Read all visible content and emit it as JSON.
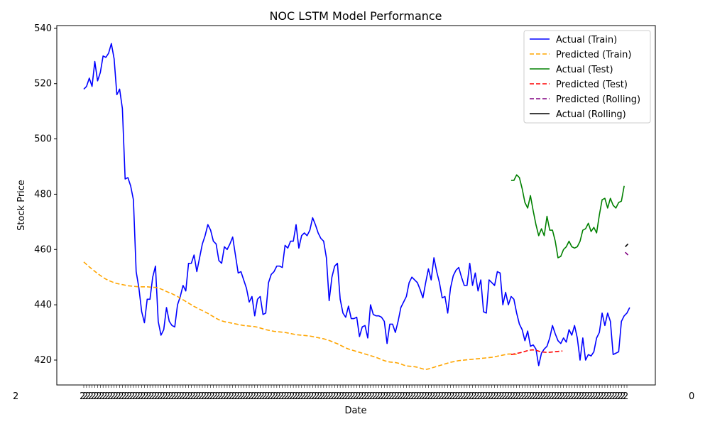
{
  "chart_data": {
    "type": "line",
    "title": "NOC LSTM Model Performance",
    "xlabel": "Date",
    "ylabel": "Stock Price",
    "ylim": [
      411,
      541
    ],
    "yticks": [
      420,
      440,
      460,
      480,
      500,
      520,
      540
    ],
    "x_tick_label_sample": "2",
    "x_tick_label_sample_end": "0",
    "grid": false,
    "legend_position": "top-right",
    "x": {
      "train_start": 0,
      "train_end": 154,
      "test_start": 155,
      "test_end": 196,
      "rolling_start": 196,
      "rolling_end": 197
    },
    "series": [
      {
        "name": "Actual (Train)",
        "color": "#0000ff",
        "dash": "solid",
        "x_start": 0,
        "x_step": 1,
        "values": [
          518,
          519,
          522,
          519,
          528,
          521,
          524,
          530,
          529.5,
          531,
          534.5,
          529,
          516,
          518,
          511,
          485.5,
          486,
          483,
          478,
          452,
          446,
          437.5,
          433.5,
          442,
          442,
          450,
          454,
          434,
          429,
          431,
          439,
          434,
          432.5,
          432,
          440,
          443,
          447,
          445,
          455,
          455,
          458,
          452,
          457,
          462,
          465,
          469,
          467,
          463,
          462,
          456,
          455,
          461,
          460,
          462,
          464.5,
          458,
          451.5,
          452,
          449,
          446,
          441,
          443,
          436,
          442,
          443,
          436.5,
          437,
          448,
          451,
          452,
          454,
          454,
          453.5,
          461.5,
          460.5,
          463,
          463,
          469,
          460.5,
          465,
          466,
          465,
          467,
          471.5,
          469,
          466,
          464,
          463,
          457,
          441.5,
          450,
          454,
          455,
          442,
          437,
          435.5,
          439.5,
          435,
          435,
          435.5,
          428.5,
          432,
          432.5,
          428,
          440,
          436.5,
          436,
          436,
          435.5,
          434,
          426,
          433,
          433,
          430,
          434,
          439,
          441,
          443,
          448,
          450,
          449,
          448,
          445.5,
          442.5,
          448,
          453,
          449,
          457,
          452,
          448,
          442.5,
          443,
          437,
          446,
          450.5,
          452.5,
          453.5,
          450,
          447,
          447,
          455,
          447,
          451.5,
          445,
          449,
          437.5,
          437,
          449,
          448,
          447,
          452,
          451.5,
          440,
          444.5,
          440,
          443,
          442,
          437,
          433,
          431,
          427,
          430.5,
          425,
          425.5,
          424,
          418,
          422.5,
          424,
          425,
          428,
          432.5,
          429.5,
          427,
          426,
          428,
          426.5,
          431,
          429,
          432.5,
          428,
          420,
          428,
          420,
          422,
          421.5,
          423,
          428,
          430,
          437,
          432.5,
          437,
          434,
          422,
          422.5,
          423,
          434,
          436,
          437,
          439
        ]
      },
      {
        "name": "Predicted (Train)",
        "color": "#ffa500",
        "dash": "dashed",
        "x_start": 0,
        "x_step": 1,
        "values": [
          455.5,
          454.6,
          453.7,
          452.9,
          452.1,
          451.3,
          450.6,
          449.9,
          449.3,
          448.8,
          448.4,
          448.0,
          447.7,
          447.5,
          447.3,
          447.1,
          446.9,
          446.8,
          446.7,
          446.6,
          446.5,
          446.5,
          446.5,
          446.5,
          446.4,
          446.3,
          446.3,
          446.1,
          445.7,
          445.3,
          444.8,
          444.4,
          444.0,
          443.5,
          443.0,
          442.4,
          441.8,
          441.2,
          440.6,
          440.0,
          439.4,
          438.9,
          438.4,
          437.9,
          437.4,
          436.9,
          436.3,
          435.7,
          435.1,
          434.6,
          434.2,
          433.9,
          433.7,
          433.5,
          433.3,
          433.1,
          432.9,
          432.7,
          432.5,
          432.4,
          432.3,
          432.2,
          432.1,
          431.9,
          431.6,
          431.3,
          431.0,
          430.8,
          430.6,
          430.4,
          430.3,
          430.2,
          430.1,
          430.0,
          429.8,
          429.6,
          429.4,
          429.2,
          429.1,
          429.0,
          428.9,
          428.8,
          428.7,
          428.5,
          428.3,
          428.1,
          427.9,
          427.7,
          427.4,
          427.1,
          426.7,
          426.3,
          425.9,
          425.4,
          424.9,
          424.4,
          424.0,
          423.7,
          423.4,
          423.1,
          422.8,
          422.5,
          422.2,
          421.9,
          421.6,
          421.3,
          421.0,
          420.6,
          420.2,
          419.8,
          419.5,
          419.3,
          419.2,
          419.1,
          418.9,
          418.6,
          418.2,
          417.9,
          417.8,
          417.7,
          417.6,
          417.4,
          417.1,
          416.8,
          416.6,
          416.8,
          417.1,
          417.4,
          417.7,
          418.0,
          418.3,
          418.6,
          418.9,
          419.2,
          419.4,
          419.6,
          419.8,
          419.9,
          420.0,
          420.1,
          420.2,
          420.3,
          420.4,
          420.5,
          420.6,
          420.7,
          420.8,
          420.9,
          421.0,
          421.2,
          421.4,
          421.6,
          421.8,
          422.0,
          422.2,
          422.2,
          422.1,
          422.1
        ]
      },
      {
        "name": "Actual (Test)",
        "color": "#008000",
        "dash": "solid",
        "x_start": 155,
        "x_step": 1,
        "values": [
          485,
          485,
          487,
          486,
          482,
          477,
          475,
          479.5,
          474,
          469,
          465,
          467.5,
          465,
          472,
          467,
          467,
          463,
          457,
          457.5,
          460,
          461,
          463,
          461,
          460.5,
          461,
          463,
          467,
          467.5,
          469.5,
          466.5,
          468,
          466,
          472.5,
          478,
          478.5,
          475,
          478.5,
          476,
          475,
          477,
          477.5,
          483
        ]
      },
      {
        "name": "Predicted (Test)",
        "color": "#ff0000",
        "dash": "dashed",
        "x_start": 155,
        "x_step": 0.98,
        "values": [
          422.0,
          422.2,
          422.4,
          422.6,
          422.8,
          423.1,
          423.4,
          423.6,
          423.7,
          423.6,
          423.3,
          423.0,
          422.9,
          422.8,
          422.8,
          422.9,
          423.0,
          423.1,
          423.2,
          423.3
        ]
      },
      {
        "name": "Predicted (Rolling)",
        "color": "#800080",
        "dash": "dashed",
        "x_start": 196.4,
        "x_step": 1,
        "values": [
          459,
          458
        ]
      },
      {
        "name": "Actual (Rolling)",
        "color": "#000000",
        "dash": "solid",
        "x_start": 196.4,
        "x_step": 1,
        "values": [
          461,
          462
        ]
      }
    ]
  }
}
